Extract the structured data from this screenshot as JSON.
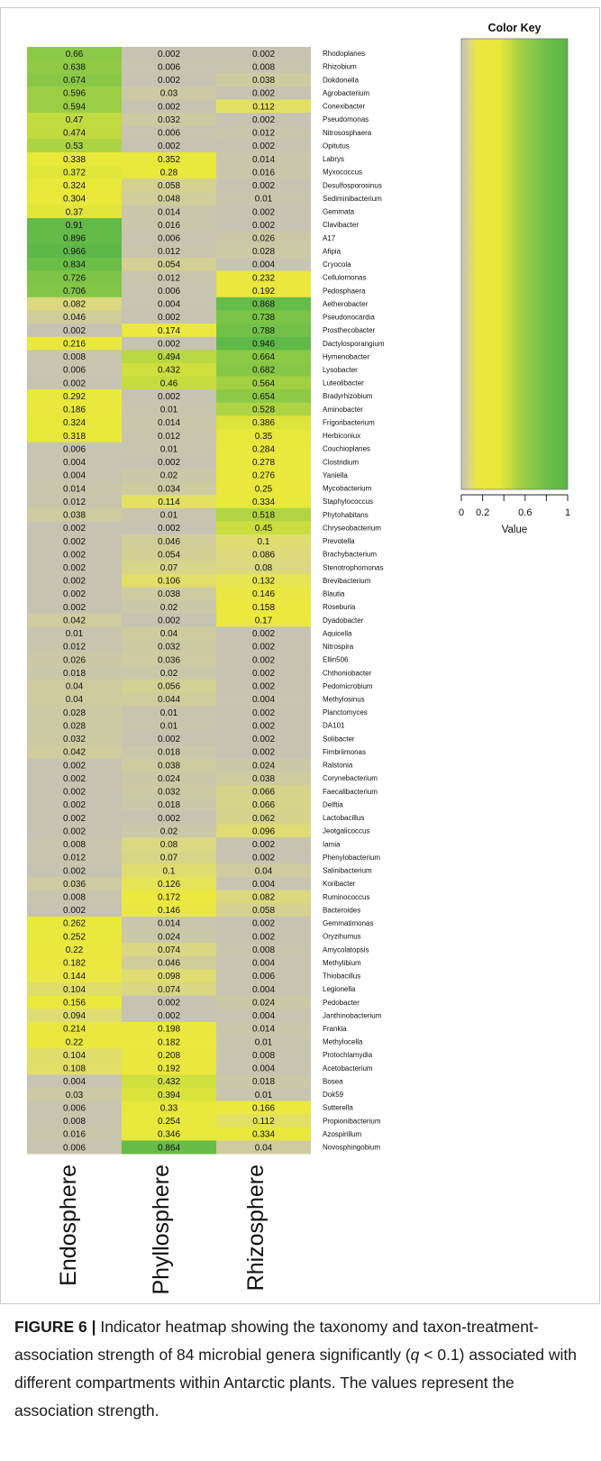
{
  "chart_data": {
    "type": "heatmap",
    "columns": [
      "Endosphere",
      "Phyllosphere",
      "Rhizosphere"
    ],
    "rows": [
      "Rhodoplanes",
      "Rhizobium",
      "Dokdonella",
      "Agrobacterium",
      "Conexibacter",
      "Pseudomonas",
      "Nitrososphaera",
      "Opitutus",
      "Labrys",
      "Myxococcus",
      "Desulfosporosinus",
      "Sediminibacterium",
      "Gemmata",
      "Clavibacter",
      "A17",
      "Afipia",
      "Cryocola",
      "Cellulomonas",
      "Pedosphaera",
      "Aetherobacter",
      "Pseudonocardia",
      "Prosthecobacter",
      "Dactylosporangium",
      "Hymenobacter",
      "Lysobacter",
      "Luteolibacter",
      "Bradyrhizobium",
      "Aminobacter",
      "Frigoribacterium",
      "Herbiconiux",
      "Couchioplanes",
      "Clostridium",
      "Yaniella",
      "Mycobacterium",
      "Staphylococcus",
      "Phytohabitans",
      "Chryseobacterium",
      "Prevotella",
      "Brachybacterium",
      "Stenotrophomonas",
      "Brevibacterium",
      "Blautia",
      "Roseburia",
      "Dyadobacter",
      "Aquicella",
      "Nitrospira",
      "Ellin506",
      "Chthoniobacter",
      "Pedomicrobium",
      "Methylosinus",
      "Planctomyces",
      "DA101",
      "Solibacter",
      "Fimbriimonas",
      "Ralstonia",
      "Corynebacterium",
      "Faecalibacterium",
      "Delftia",
      "Lactobacillus",
      "Jeotgalicoccus",
      "Iamia",
      "Phenylobacterium",
      "Salinibacterium",
      "Koribacter",
      "Ruminococcus",
      "Bacteroides",
      "Gemmatimonas",
      "Oryzihumus",
      "Amycolatopsis",
      "Methylibium",
      "Thiobacillus",
      "Legionella",
      "Pedobacter",
      "Janthinobacterium",
      "Frankia",
      "Methylocella",
      "Protochlamydia",
      "Acetobacterium",
      "Bosea",
      "Dok59",
      "Sutterella",
      "Propionibacterium",
      "Azospirillum",
      "Novosphingobium"
    ],
    "values": [
      [
        0.66,
        0.002,
        0.002
      ],
      [
        0.638,
        0.006,
        0.008
      ],
      [
        0.674,
        0.002,
        0.038
      ],
      [
        0.596,
        0.03,
        0.002
      ],
      [
        0.594,
        0.002,
        0.112
      ],
      [
        0.47,
        0.032,
        0.002
      ],
      [
        0.474,
        0.006,
        0.012
      ],
      [
        0.53,
        0.002,
        0.002
      ],
      [
        0.338,
        0.352,
        0.014
      ],
      [
        0.372,
        0.28,
        0.016
      ],
      [
        0.324,
        0.058,
        0.002
      ],
      [
        0.304,
        0.048,
        0.01
      ],
      [
        0.37,
        0.014,
        0.002
      ],
      [
        0.91,
        0.016,
        0.002
      ],
      [
        0.896,
        0.006,
        0.026
      ],
      [
        0.966,
        0.012,
        0.028
      ],
      [
        0.834,
        0.054,
        0.004
      ],
      [
        0.726,
        0.012,
        0.232
      ],
      [
        0.706,
        0.006,
        0.192
      ],
      [
        0.082,
        0.004,
        0.868
      ],
      [
        0.046,
        0.002,
        0.738
      ],
      [
        0.002,
        0.174,
        0.788
      ],
      [
        0.216,
        0.002,
        0.946
      ],
      [
        0.008,
        0.494,
        0.664
      ],
      [
        0.006,
        0.432,
        0.682
      ],
      [
        0.002,
        0.46,
        0.564
      ],
      [
        0.292,
        0.002,
        0.654
      ],
      [
        0.186,
        0.01,
        0.528
      ],
      [
        0.324,
        0.014,
        0.386
      ],
      [
        0.318,
        0.012,
        0.35
      ],
      [
        0.006,
        0.01,
        0.284
      ],
      [
        0.004,
        0.002,
        0.278
      ],
      [
        0.004,
        0.02,
        0.276
      ],
      [
        0.014,
        0.034,
        0.25
      ],
      [
        0.012,
        0.114,
        0.334
      ],
      [
        0.038,
        0.01,
        0.518
      ],
      [
        0.002,
        0.002,
        0.45
      ],
      [
        0.002,
        0.046,
        0.1
      ],
      [
        0.002,
        0.054,
        0.086
      ],
      [
        0.002,
        0.07,
        0.08
      ],
      [
        0.002,
        0.106,
        0.132
      ],
      [
        0.002,
        0.038,
        0.146
      ],
      [
        0.002,
        0.02,
        0.158
      ],
      [
        0.042,
        0.002,
        0.17
      ],
      [
        0.01,
        0.04,
        0.002
      ],
      [
        0.012,
        0.032,
        0.002
      ],
      [
        0.026,
        0.036,
        0.002
      ],
      [
        0.018,
        0.02,
        0.002
      ],
      [
        0.04,
        0.056,
        0.002
      ],
      [
        0.04,
        0.044,
        0.004
      ],
      [
        0.028,
        0.01,
        0.002
      ],
      [
        0.028,
        0.01,
        0.002
      ],
      [
        0.032,
        0.002,
        0.002
      ],
      [
        0.042,
        0.018,
        0.002
      ],
      [
        0.002,
        0.038,
        0.024
      ],
      [
        0.002,
        0.024,
        0.038
      ],
      [
        0.002,
        0.032,
        0.066
      ],
      [
        0.002,
        0.018,
        0.066
      ],
      [
        0.002,
        0.002,
        0.062
      ],
      [
        0.002,
        0.02,
        0.096
      ],
      [
        0.008,
        0.08,
        0.002
      ],
      [
        0.012,
        0.07,
        0.002
      ],
      [
        0.002,
        0.1,
        0.04
      ],
      [
        0.036,
        0.126,
        0.004
      ],
      [
        0.008,
        0.172,
        0.082
      ],
      [
        0.002,
        0.146,
        0.058
      ],
      [
        0.262,
        0.014,
        0.002
      ],
      [
        0.252,
        0.024,
        0.002
      ],
      [
        0.22,
        0.074,
        0.008
      ],
      [
        0.182,
        0.046,
        0.004
      ],
      [
        0.144,
        0.098,
        0.006
      ],
      [
        0.104,
        0.074,
        0.004
      ],
      [
        0.156,
        0.002,
        0.024
      ],
      [
        0.094,
        0.002,
        0.004
      ],
      [
        0.214,
        0.198,
        0.014
      ],
      [
        0.22,
        0.182,
        0.01
      ],
      [
        0.104,
        0.208,
        0.008
      ],
      [
        0.108,
        0.192,
        0.004
      ],
      [
        0.004,
        0.432,
        0.018
      ],
      [
        0.03,
        0.394,
        0.01
      ],
      [
        0.006,
        0.33,
        0.166
      ],
      [
        0.008,
        0.254,
        0.112
      ],
      [
        0.016,
        0.346,
        0.334
      ],
      [
        0.006,
        0.864,
        0.04
      ]
    ],
    "color_key": {
      "title": "Color Key",
      "xlabel": "Value",
      "range": [
        0,
        1
      ],
      "ticks": [
        {
          "value": 0,
          "label": "0"
        },
        {
          "value": 0.2,
          "label": "0.2"
        },
        {
          "value": 0.4,
          "label": ""
        },
        {
          "value": 0.6,
          "label": "0.6"
        },
        {
          "value": 0.8,
          "label": ""
        },
        {
          "value": 1,
          "label": "1"
        }
      ]
    },
    "color_scale": [
      {
        "value": 0,
        "color": "#c6c3b3"
      },
      {
        "value": 0.04,
        "color": "#cfcb9f"
      },
      {
        "value": 0.09,
        "color": "#dddb78"
      },
      {
        "value": 0.15,
        "color": "#ebe840"
      },
      {
        "value": 0.35,
        "color": "#e8e83a"
      },
      {
        "value": 0.45,
        "color": "#c9dd3f"
      },
      {
        "value": 0.55,
        "color": "#a5d143"
      },
      {
        "value": 0.7,
        "color": "#83c647"
      },
      {
        "value": 0.85,
        "color": "#68bd48"
      },
      {
        "value": 1,
        "color": "#5ab648"
      }
    ]
  },
  "caption": {
    "label": "FIGURE 6 |",
    "text_1": " Indicator heatmap showing the taxonomy and taxon-treatment-association strength of 84 microbial genera significantly (",
    "italic": "q",
    "text_2": " < 0.1) associated with different compartments within Antarctic plants. The values represent the association strength."
  }
}
